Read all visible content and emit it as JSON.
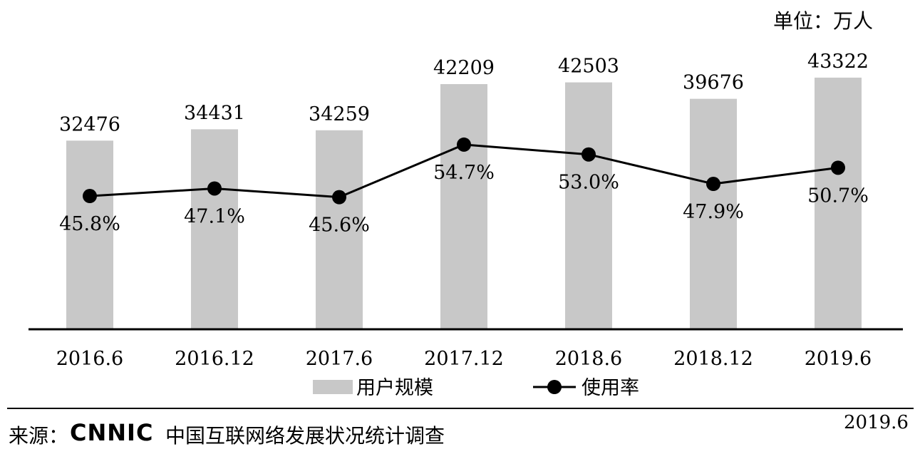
{
  "unit_label": "单位：万人",
  "footer": {
    "source_prefix": "来源：",
    "logo_text": "CNNIC",
    "source_org": "中国互联网络发展状况统计调查",
    "date": "2019.6"
  },
  "colors": {
    "bar": "#c8c8c8",
    "line": "#000000",
    "axis": "#000000"
  },
  "chart_data": {
    "type": "bar",
    "title": "",
    "categories": [
      "2016.6",
      "2016.12",
      "2017.6",
      "2017.12",
      "2018.6",
      "2018.12",
      "2019.6"
    ],
    "series": [
      {
        "name": "用户规模",
        "type": "bar",
        "values": [
          32476,
          34431,
          34259,
          42209,
          42503,
          39676,
          43322
        ]
      },
      {
        "name": "使用率",
        "type": "line",
        "unit": "%",
        "values": [
          45.8,
          47.1,
          45.6,
          54.7,
          53.0,
          47.9,
          50.7
        ]
      }
    ],
    "value_labels": {
      "bar": [
        "32476",
        "34431",
        "34259",
        "42209",
        "42503",
        "39676",
        "43322"
      ],
      "line": [
        "45.8%",
        "47.1%",
        "45.6%",
        "54.7%",
        "53.0%",
        "47.9%",
        "50.7%"
      ]
    },
    "legend": {
      "position": "bottom",
      "items": [
        "用户规模",
        "使用率"
      ]
    },
    "grid": false
  }
}
